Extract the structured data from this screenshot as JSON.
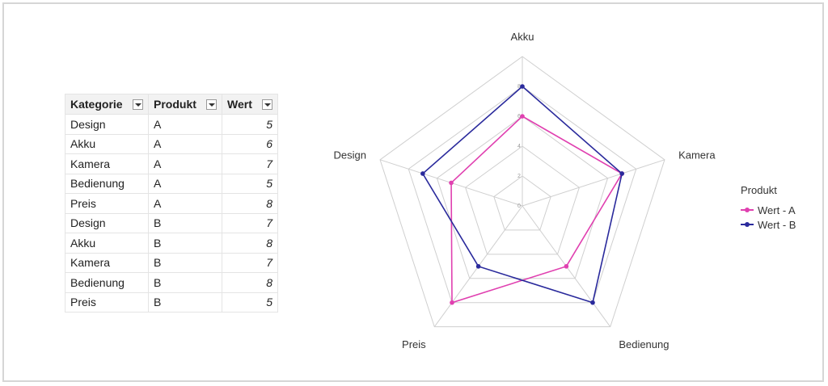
{
  "table": {
    "headers": [
      "Kategorie",
      "Produkt",
      "Wert"
    ],
    "rows": [
      [
        "Design",
        "A",
        "5"
      ],
      [
        "Akku",
        "A",
        "6"
      ],
      [
        "Kamera",
        "A",
        "7"
      ],
      [
        "Bedienung",
        "A",
        "5"
      ],
      [
        "Preis",
        "A",
        "8"
      ],
      [
        "Design",
        "B",
        "7"
      ],
      [
        "Akku",
        "B",
        "8"
      ],
      [
        "Kamera",
        "B",
        "7"
      ],
      [
        "Bedienung",
        "B",
        "8"
      ],
      [
        "Preis",
        "B",
        "5"
      ]
    ]
  },
  "legend": {
    "title": "Produkt",
    "items": [
      "Wert - A",
      "Wert - B"
    ]
  },
  "chart_data": {
    "type": "radar",
    "categories": [
      "Akku",
      "Kamera",
      "Bedienung",
      "Preis",
      "Design"
    ],
    "series": [
      {
        "name": "Wert - A",
        "values": [
          6,
          7,
          5,
          8,
          5
        ],
        "color": "#e040b0"
      },
      {
        "name": "Wert - B",
        "values": [
          8,
          7,
          8,
          5,
          7
        ],
        "color": "#2a2a9c"
      }
    ],
    "ticks": [
      0,
      2,
      4,
      6,
      8
    ],
    "range": [
      0,
      10
    ],
    "legend_title": "Produkt",
    "legend_position": "right",
    "grid": true
  }
}
